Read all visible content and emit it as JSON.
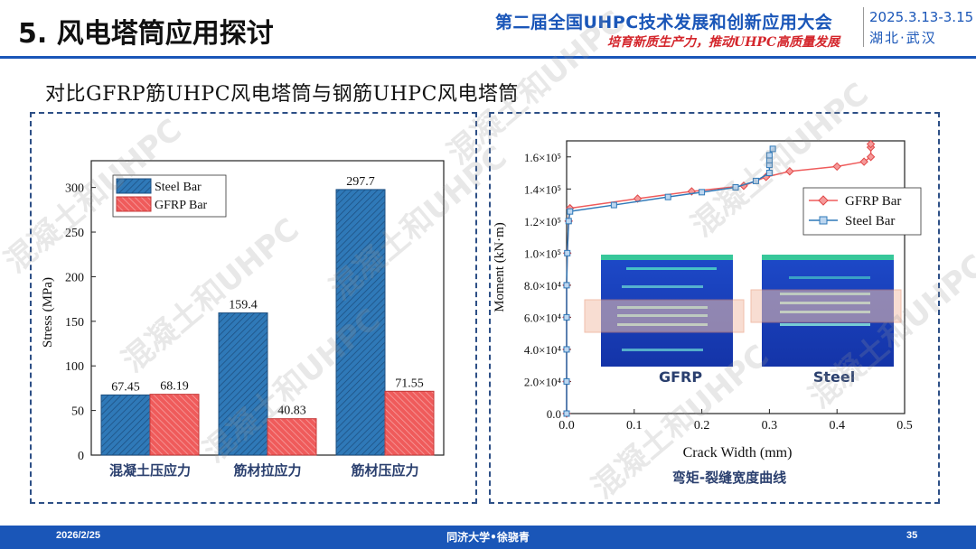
{
  "header": {
    "title": "5. 风电塔筒应用探讨",
    "conference": "第二届全国UHPC技术发展和创新应用大会",
    "slogan": "培育新质生产力，推动UHPC高质量发展",
    "date_range": "2025.3.13-3.15",
    "city": "湖北·武汉"
  },
  "subtitle": "对比GFRP筋UHPC风电塔筒与钢筋UHPC风电塔筒",
  "colors": {
    "accent": "#1a56b8",
    "steel": "#2f79b8",
    "gfrp": "#ef5b5b"
  },
  "bar_chart_data": {
    "type": "bar",
    "categories": [
      "混凝土压应力",
      "筋材拉应力",
      "筋材压应力"
    ],
    "series": [
      {
        "name": "Steel Bar",
        "values": [
          67.45,
          159.4,
          297.7
        ],
        "labels": [
          "67.45",
          "159.4",
          "297.7"
        ]
      },
      {
        "name": "GFRP Bar",
        "values": [
          68.19,
          40.83,
          71.55
        ],
        "labels": [
          "68.19",
          "40.83",
          "71.55"
        ]
      }
    ],
    "ylabel": "Stress (MPa)",
    "ylim": [
      0,
      330
    ],
    "yticks": [
      0,
      50,
      100,
      150,
      200,
      250,
      300
    ],
    "legend": "top-left"
  },
  "chart_data": {
    "type": "line",
    "title": "弯矩-裂缝宽度曲线",
    "xlabel": "Crack Width (mm)",
    "ylabel": "Moment (kN·m)",
    "xlim": [
      0,
      0.5
    ],
    "ylim": [
      0,
      170000
    ],
    "xticks": [
      "0.0",
      "0.1",
      "0.2",
      "0.3",
      "0.4",
      "0.5"
    ],
    "yticks": [
      "0.0",
      "2.0×10⁴",
      "4.0×10⁴",
      "6.0×10⁴",
      "8.0×10⁴",
      "1.0×10⁵",
      "1.2×10⁵",
      "1.4×10⁵",
      "1.6×10⁵"
    ],
    "legend": "top-right",
    "series": [
      {
        "name": "GFRP Bar",
        "x": [
          0.0,
          0.0,
          0.0,
          0.0,
          0.0,
          0.001,
          0.003,
          0.005,
          0.105,
          0.185,
          0.262,
          0.295,
          0.33,
          0.4,
          0.44,
          0.45,
          0.45,
          0.45
        ],
        "y": [
          0,
          20000,
          40000,
          60000,
          80000,
          100000,
          120000,
          128000,
          134000,
          138500,
          142000,
          147500,
          151000,
          154000,
          157000,
          160000,
          166000,
          168000
        ]
      },
      {
        "name": "Steel Bar",
        "x": [
          0.0,
          0.0,
          0.0,
          0.0,
          0.0,
          0.001,
          0.003,
          0.005,
          0.07,
          0.15,
          0.2,
          0.25,
          0.28,
          0.3,
          0.3,
          0.3,
          0.3,
          0.305
        ],
        "y": [
          0,
          20000,
          40000,
          60000,
          80000,
          100000,
          120000,
          126000,
          130000,
          135000,
          138000,
          141000,
          145000,
          150000,
          155000,
          158000,
          161000,
          165000
        ]
      }
    ],
    "inset_labels": [
      "GFRP",
      "Steel"
    ]
  },
  "bar_title": "",
  "footer": {
    "date": "2026/2/25",
    "author": "同济大学•徐骁青",
    "page": "35"
  },
  "watermark": "混凝土和UHPC"
}
